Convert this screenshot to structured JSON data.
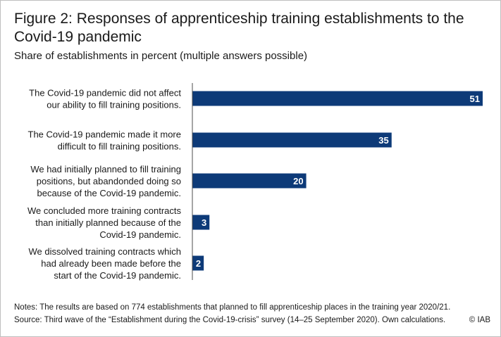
{
  "title": "Figure 2: Responses of apprenticeship training establishments to the Covid-19 pandemic",
  "subtitle": "Share of establishments in percent (multiple answers possible)",
  "notes": "Notes: The results are based on 774 establishments that planned to fill apprenticeship places in the training year 2020/21.",
  "source": "Source: Third wave of the “Establishment during the Covid-19-crisis” survey (14–25 September 2020). Own calculations.",
  "copyright": "© IAB",
  "colors": {
    "bar": "#0d3a78",
    "axis": "#4d4d4d",
    "label": "#ffffff"
  },
  "chart_data": {
    "type": "bar",
    "orientation": "horizontal",
    "categories": [
      [
        "The Covid-19 pandemic did not affect",
        "our ability to fill training positions."
      ],
      [
        "The Covid-19 pandemic made it more",
        "difficult to fill training positions."
      ],
      [
        "We had initially planned to fill training",
        "positions, but abandonded doing so",
        "because of the Covid-19 pandemic."
      ],
      [
        "We concluded more training contracts",
        "than initially planned because of the",
        "Covid-19 pandemic."
      ],
      [
        "We dissolved training contracts which",
        "had already been made before the",
        "start of the Covid-19 pandemic."
      ]
    ],
    "values": [
      51,
      35,
      20,
      3,
      2
    ],
    "xlim": [
      0,
      51
    ],
    "grid": false
  }
}
